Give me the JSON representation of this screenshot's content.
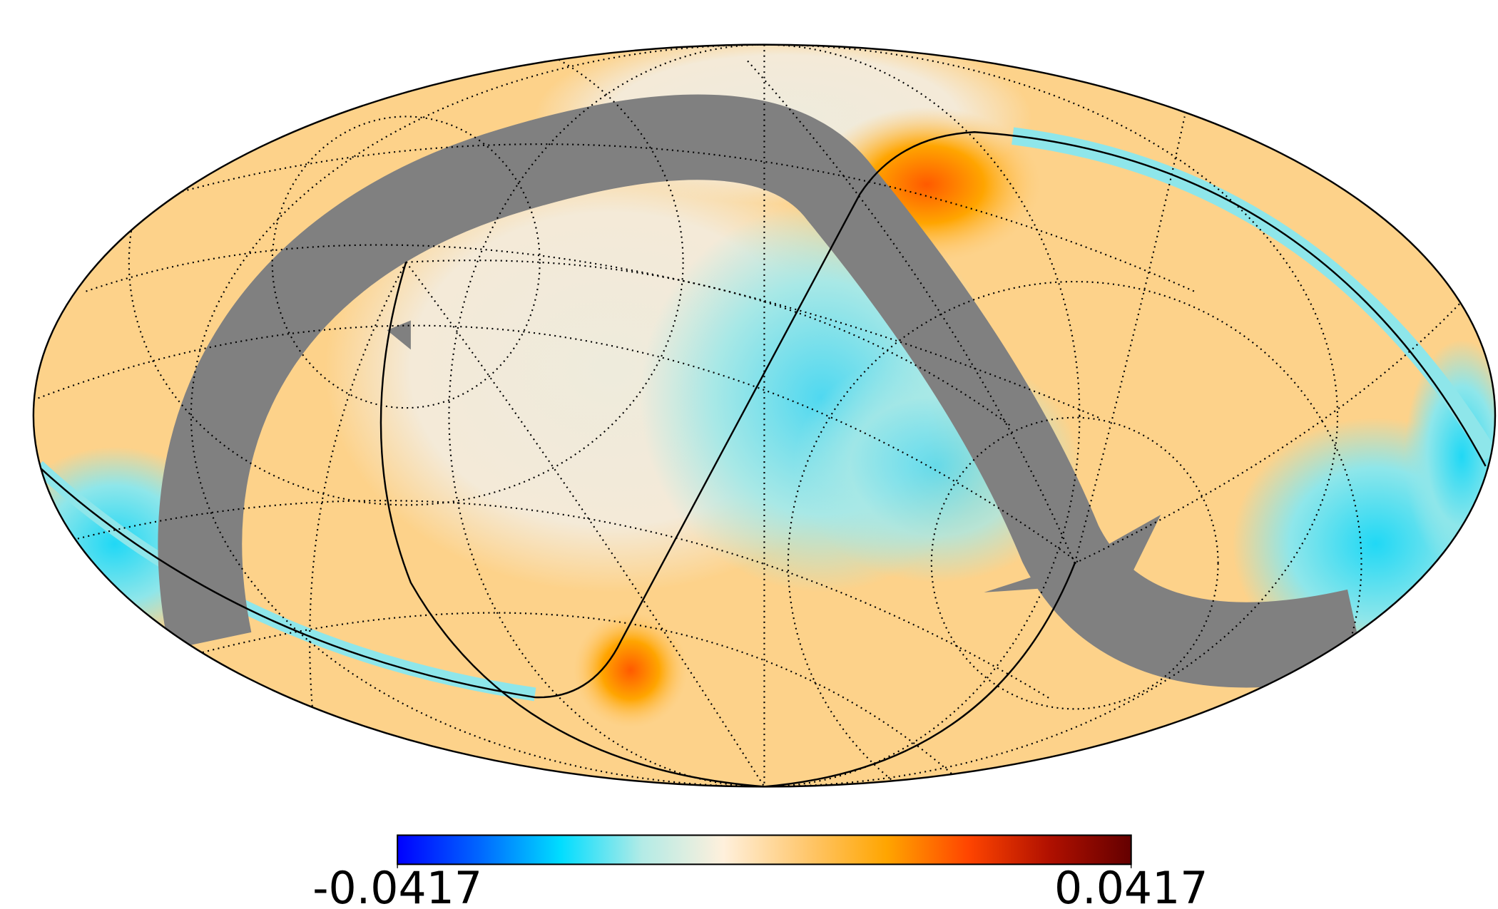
{
  "chart_data": {
    "type": "mollweide",
    "colorbar": {
      "min": -0.0417,
      "max": 0.0417,
      "ticks": [
        -0.0417,
        0.0417
      ],
      "colormap": [
        "#0000ff",
        "#0066ff",
        "#00ddff",
        "#b3ebe6",
        "#fff0dc",
        "#ffc870",
        "#ffa500",
        "#ff4500",
        "#b01000",
        "#640000"
      ]
    }
  }
}
